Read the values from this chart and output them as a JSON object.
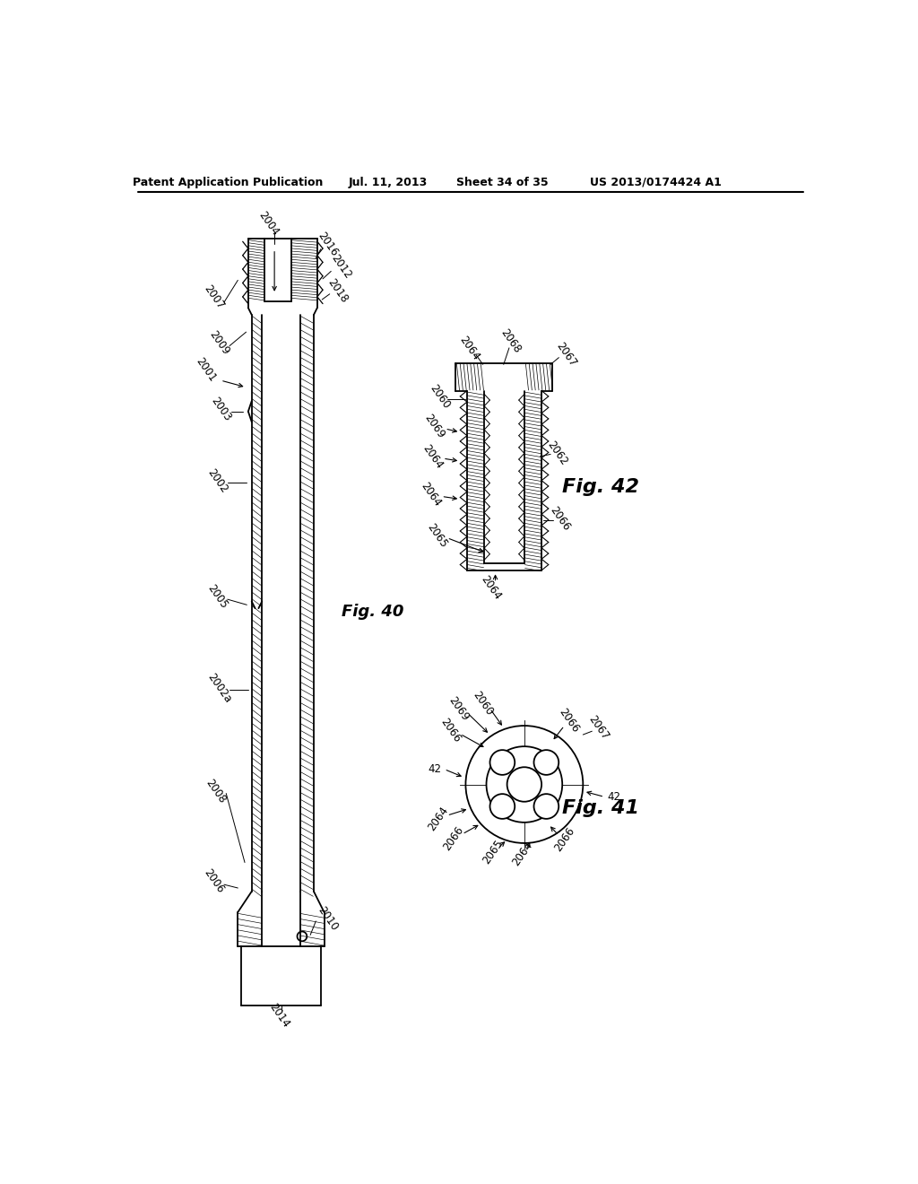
{
  "bg_color": "#ffffff",
  "header_text": "Patent Application Publication",
  "header_date": "Jul. 11, 2013",
  "header_sheet": "Sheet 34 of 35",
  "header_patent": "US 2013/0174424 A1",
  "fig40_label": "Fig. 40",
  "fig41_label": "Fig. 41",
  "fig42_label": "Fig. 42",
  "text_color": "#000000"
}
